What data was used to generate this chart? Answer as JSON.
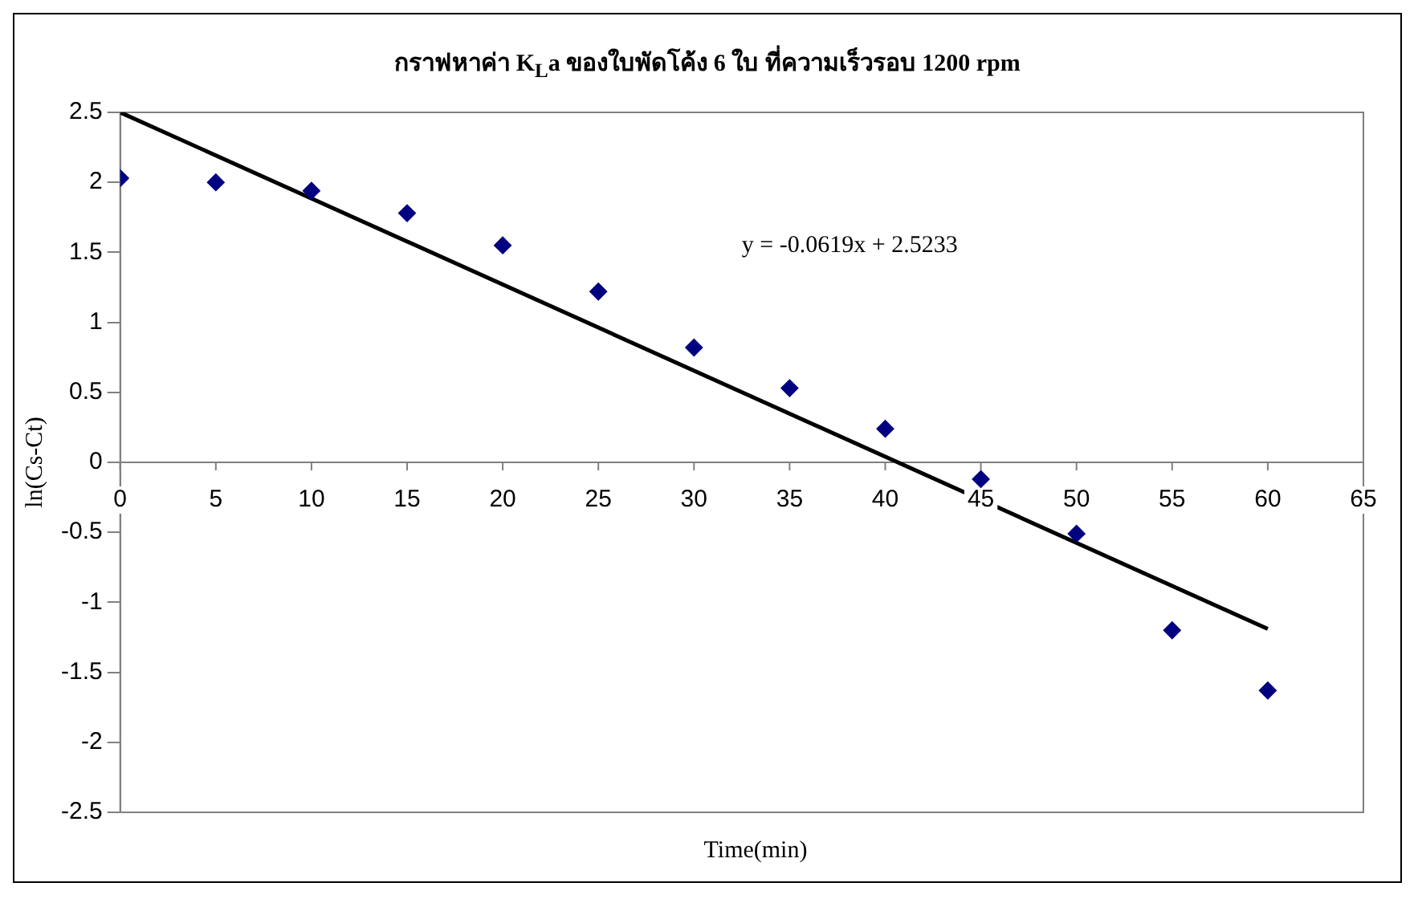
{
  "chart_data": {
    "type": "scatter",
    "title": "กราฟหาค่า K$_{L}$a ของใบพัดโค้ง 6 ใบ ที่ความเร็วรอบ 1200 rpm",
    "xlabel": "Time(min)",
    "ylabel": "ln(Cs-Ct)",
    "x": [
      0,
      5,
      10,
      15,
      20,
      25,
      30,
      35,
      40,
      45,
      50,
      55,
      60
    ],
    "series": [
      {
        "type": "scatter",
        "marker": "diamond",
        "color": "#000080",
        "values": [
          2.03,
          2.0,
          1.94,
          1.78,
          1.55,
          1.22,
          0.82,
          0.53,
          0.24,
          -0.12,
          -0.51,
          -1.2,
          -1.63
        ]
      },
      {
        "type": "line",
        "marker": "none",
        "color": "#000000",
        "x": [
          0,
          60
        ],
        "values": [
          2.5,
          -1.19
        ]
      }
    ],
    "xlim": [
      0,
      65
    ],
    "xticks": [
      0,
      5,
      10,
      15,
      20,
      25,
      30,
      35,
      40,
      45,
      50,
      55,
      60,
      65
    ],
    "ylim": [
      -2.5,
      2.5
    ],
    "yticks": [
      -2.5,
      -2,
      -1.5,
      -1,
      -0.5,
      0,
      0.5,
      1,
      1.5,
      2,
      2.5
    ],
    "annotations": [
      "y = -0.0619x + 2.5233"
    ],
    "grid": false,
    "legend": false,
    "line_style": "solid"
  }
}
